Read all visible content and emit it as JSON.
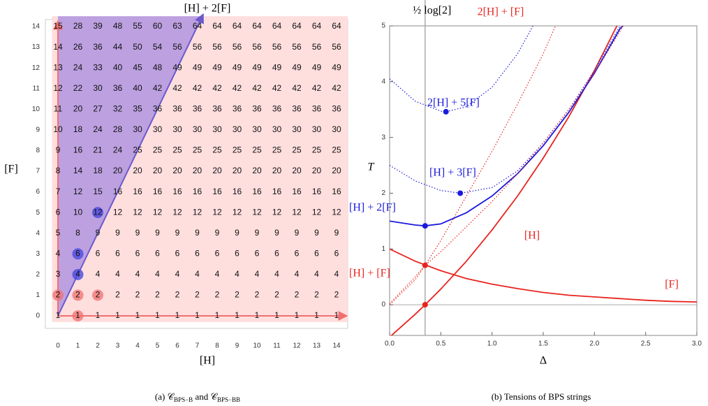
{
  "grid_panel": {
    "title": "[H] + 2[F]",
    "xlabel": "[H]",
    "ylabel": "[F]",
    "xticks": [
      0,
      1,
      2,
      3,
      4,
      5,
      6,
      7,
      8,
      9,
      10,
      11,
      12,
      13,
      14
    ],
    "yticks": [
      0,
      1,
      2,
      3,
      4,
      5,
      6,
      7,
      8,
      9,
      10,
      11,
      12,
      13,
      14
    ],
    "rows": [
      [
        1,
        1,
        1,
        1,
        1,
        1,
        1,
        1,
        1,
        1,
        1,
        1,
        1,
        1,
        1
      ],
      [
        2,
        2,
        2,
        2,
        2,
        2,
        2,
        2,
        2,
        2,
        2,
        2,
        2,
        2,
        2
      ],
      [
        3,
        4,
        4,
        4,
        4,
        4,
        4,
        4,
        4,
        4,
        4,
        4,
        4,
        4,
        4
      ],
      [
        4,
        6,
        6,
        6,
        6,
        6,
        6,
        6,
        6,
        6,
        6,
        6,
        6,
        6,
        6
      ],
      [
        5,
        8,
        9,
        9,
        9,
        9,
        9,
        9,
        9,
        9,
        9,
        9,
        9,
        9,
        9
      ],
      [
        6,
        10,
        12,
        12,
        12,
        12,
        12,
        12,
        12,
        12,
        12,
        12,
        12,
        12,
        12
      ],
      [
        7,
        12,
        15,
        16,
        16,
        16,
        16,
        16,
        16,
        16,
        16,
        16,
        16,
        16,
        16
      ],
      [
        8,
        14,
        18,
        20,
        20,
        20,
        20,
        20,
        20,
        20,
        20,
        20,
        20,
        20,
        20
      ],
      [
        9,
        16,
        21,
        24,
        25,
        25,
        25,
        25,
        25,
        25,
        25,
        25,
        25,
        25,
        25
      ],
      [
        10,
        18,
        24,
        28,
        30,
        30,
        30,
        30,
        30,
        30,
        30,
        30,
        30,
        30,
        30
      ],
      [
        11,
        20,
        27,
        32,
        35,
        36,
        36,
        36,
        36,
        36,
        36,
        36,
        36,
        36,
        36
      ],
      [
        12,
        22,
        30,
        36,
        40,
        42,
        42,
        42,
        42,
        42,
        42,
        42,
        42,
        42,
        42
      ],
      [
        13,
        24,
        33,
        40,
        45,
        48,
        49,
        49,
        49,
        49,
        49,
        49,
        49,
        49,
        49
      ],
      [
        14,
        26,
        36,
        44,
        50,
        54,
        56,
        56,
        56,
        56,
        56,
        56,
        56,
        56,
        56
      ],
      [
        15,
        28,
        39,
        48,
        55,
        60,
        63,
        64,
        64,
        64,
        64,
        64,
        64,
        64,
        64
      ]
    ],
    "highlight_red": [
      [
        1,
        0
      ],
      [
        0,
        1
      ],
      [
        1,
        1
      ],
      [
        2,
        1
      ]
    ],
    "highlight_blue": [
      [
        1,
        2
      ],
      [
        1,
        3
      ],
      [
        2,
        5
      ]
    ],
    "caption": [
      {
        "text": "(a) "
      },
      {
        "text": "𝒞"
      },
      {
        "text": "BPS−B",
        "sub": true
      },
      {
        "text": " and "
      },
      {
        "text": "𝒞"
      },
      {
        "text": "BPS−BB",
        "sub": true
      }
    ]
  },
  "chart_data": {
    "type": "line",
    "xlabel": "Δ",
    "ylabel": "T",
    "xlim": [
      0,
      3
    ],
    "ylim": [
      -0.55,
      5
    ],
    "xticks": [
      {
        "value": 0,
        "label": "0.0"
      },
      {
        "value": 0.5,
        "label": "0.5"
      },
      {
        "value": 1,
        "label": "1.0"
      },
      {
        "value": 1.5,
        "label": "1.5"
      },
      {
        "value": 2,
        "label": "2.0"
      },
      {
        "value": 2.5,
        "label": "2.5"
      },
      {
        "value": 3,
        "label": "3.0"
      }
    ],
    "yticks": [
      0,
      1,
      2,
      3,
      4,
      5
    ],
    "vline": {
      "x": 0.3466,
      "label": "½ log[2]"
    },
    "series": [
      {
        "name": "[F]",
        "color": "#e8231f",
        "dashed": false,
        "x": [
          0,
          0.25,
          0.5,
          0.75,
          1,
          1.25,
          1.5,
          1.75,
          2,
          2.25,
          2.5,
          2.75,
          3
        ],
        "values": [
          1,
          0.78,
          0.61,
          0.47,
          0.37,
          0.29,
          0.22,
          0.17,
          0.14,
          0.11,
          0.08,
          0.06,
          0.05
        ]
      },
      {
        "name": "[H]",
        "color": "#e8231f",
        "dashed": false,
        "x": [
          0,
          0.25,
          0.3466,
          0.5,
          0.75,
          1,
          1.25,
          1.5,
          1.75,
          2,
          2.25
        ],
        "values": [
          -0.58,
          -0.17,
          0,
          0.28,
          0.78,
          1.34,
          1.95,
          2.63,
          3.37,
          4.2,
          5.11
        ]
      },
      {
        "name": "[H] + 2[F]",
        "color": "#1a1adb",
        "dashed": false,
        "x": [
          0,
          0.25,
          0.3466,
          0.5,
          0.75,
          1,
          1.25,
          1.5,
          1.75,
          2,
          2.25,
          2.28
        ],
        "values": [
          1.5,
          1.43,
          1.414,
          1.45,
          1.65,
          1.95,
          2.35,
          2.85,
          3.45,
          4.15,
          4.95,
          5
        ]
      },
      {
        "name": "[H] + 3[F]",
        "color": "#1a1adb",
        "dashed": true,
        "x": [
          0,
          0.25,
          0.5,
          0.69,
          1,
          1.25,
          1.5,
          1.75,
          2,
          2.25
        ],
        "values": [
          2.5,
          2.22,
          2.05,
          2,
          2.1,
          2.4,
          2.9,
          3.5,
          4.2,
          5
        ]
      },
      {
        "name": "2[H] + 5[F]",
        "color": "#1a1adb",
        "dashed": true,
        "x": [
          0,
          0.25,
          0.5,
          0.55,
          0.75,
          1,
          1.25,
          1.4
        ],
        "values": [
          4.05,
          3.65,
          3.47,
          3.46,
          3.55,
          3.9,
          4.5,
          5
        ]
      },
      {
        "name": "[H] + [F]",
        "color": "#e8231f",
        "dashed": true,
        "x": [
          0,
          0.25,
          0.3466,
          0.5,
          0.75,
          1,
          1.25,
          1.5,
          1.75,
          2,
          2.25,
          2.28
        ],
        "values": [
          0.02,
          0.5,
          0.707,
          0.95,
          1.4,
          1.85,
          2.35,
          2.9,
          3.5,
          4.15,
          4.9,
          5
        ]
      },
      {
        "name": "2[H] + [F]",
        "color": "#e8231f",
        "dashed": true,
        "x": [
          0,
          0.25,
          0.3466,
          0.5,
          0.75,
          1,
          1.25,
          1.5,
          1.62
        ],
        "values": [
          0,
          0.45,
          0.707,
          1.15,
          1.95,
          2.75,
          3.6,
          4.5,
          5
        ]
      }
    ],
    "points": [
      {
        "x": 0.3466,
        "y": 0,
        "color": "#e8231f"
      },
      {
        "x": 0.3466,
        "y": 0.707,
        "color": "#e8231f"
      },
      {
        "x": 0.3466,
        "y": 1.414,
        "color": "#1a1adb"
      },
      {
        "x": 0.69,
        "y": 2.0,
        "color": "#1a1adb"
      },
      {
        "x": 0.55,
        "y": 3.46,
        "color": "#1a1adb"
      }
    ],
    "caption": "(b) Tensions of BPS strings"
  }
}
